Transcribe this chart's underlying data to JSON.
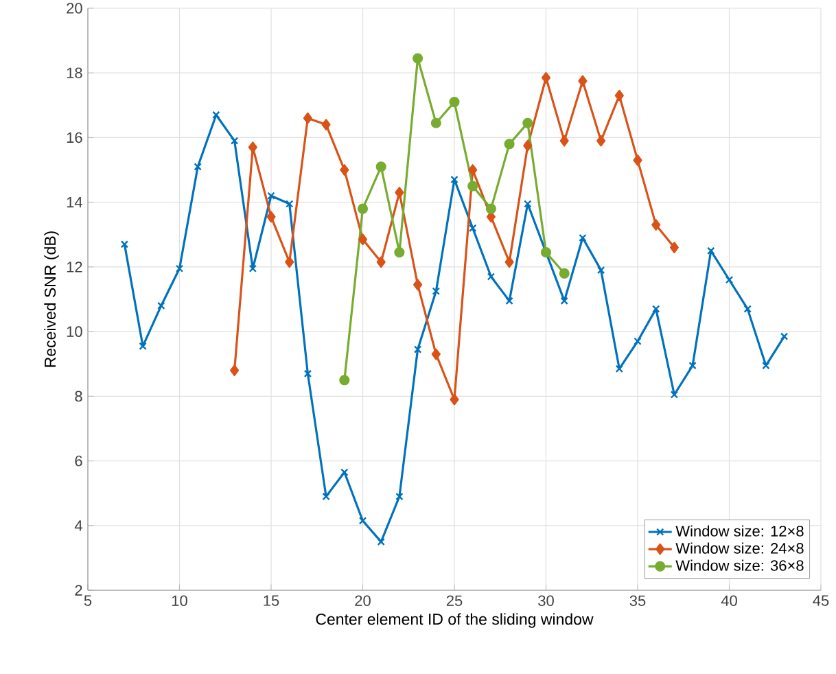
{
  "chart_data": {
    "type": "line",
    "xlabel": "Center element ID of the sliding window",
    "ylabel": "Received SNR (dB)",
    "xlim": [
      5,
      45
    ],
    "ylim": [
      2,
      20
    ],
    "xticks": [
      5,
      10,
      15,
      20,
      25,
      30,
      35,
      40,
      45
    ],
    "yticks": [
      2,
      4,
      6,
      8,
      10,
      12,
      14,
      16,
      18,
      20
    ],
    "grid": true,
    "legend": "bottom right",
    "line_style": "solid",
    "series": [
      {
        "name": "Window size: 12×8",
        "color": "#0072bd",
        "marker": "cross",
        "x": [
          7,
          8,
          9,
          10,
          11,
          12,
          13,
          14,
          15,
          16,
          17,
          18,
          19,
          20,
          21,
          22,
          23,
          24,
          25,
          26,
          27,
          28,
          29,
          30,
          31,
          32,
          33,
          34,
          35,
          36,
          37,
          38,
          39,
          40,
          41,
          42,
          43
        ],
        "values": [
          12.7,
          9.55,
          10.8,
          11.95,
          15.1,
          16.7,
          15.9,
          11.95,
          14.2,
          13.95,
          8.7,
          4.9,
          5.65,
          4.15,
          3.5,
          4.9,
          9.45,
          11.25,
          14.7,
          13.2,
          11.7,
          10.95,
          13.95,
          12.45,
          10.95,
          12.9,
          11.9,
          8.85,
          9.7,
          10.7,
          8.05,
          8.95,
          12.5,
          11.6,
          10.7,
          8.95,
          9.85
        ]
      },
      {
        "name": "Window size: 24×8",
        "color": "#d95319",
        "marker": "diamond",
        "x": [
          13,
          14,
          15,
          16,
          17,
          18,
          19,
          20,
          21,
          22,
          23,
          24,
          25,
          26,
          27,
          28,
          29,
          30,
          31,
          32,
          33,
          34,
          35,
          36,
          37
        ],
        "values": [
          8.8,
          15.7,
          13.55,
          12.15,
          16.6,
          16.4,
          15.0,
          12.85,
          12.15,
          14.3,
          11.45,
          9.3,
          7.9,
          15.0,
          13.55,
          12.15,
          15.75,
          17.85,
          15.9,
          17.75,
          15.9,
          17.3,
          15.3,
          13.3,
          12.6
        ]
      },
      {
        "name": "Window size: 36×8",
        "color": "#77ac30",
        "marker": "circle",
        "x": [
          19,
          20,
          21,
          22,
          23,
          24,
          25,
          26,
          27,
          28,
          29,
          30,
          31
        ],
        "values": [
          8.5,
          13.8,
          15.1,
          12.45,
          18.45,
          16.45,
          17.1,
          14.5,
          13.8,
          15.8,
          16.45,
          12.45,
          11.8
        ]
      }
    ]
  }
}
